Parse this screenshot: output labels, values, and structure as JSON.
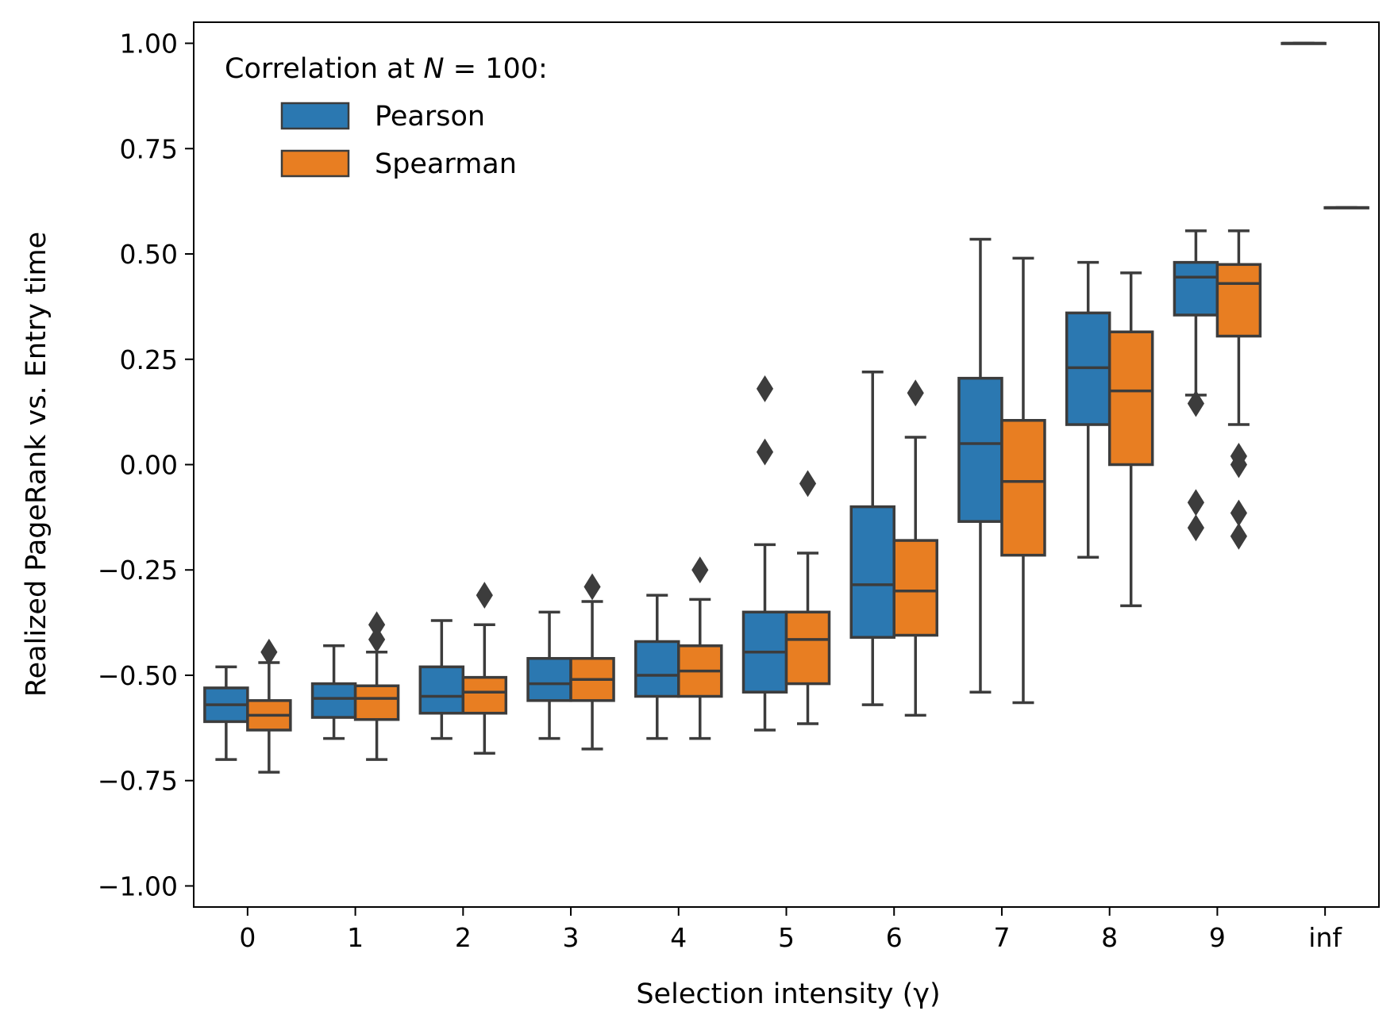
{
  "chart_data": {
    "type": "box",
    "xlabel": "Selection intensity (γ)",
    "ylabel": "Realized PageRank vs. Entry time",
    "ylim": [
      -1.05,
      1.05
    ],
    "yticks": [
      -1.0,
      -0.75,
      -0.5,
      -0.25,
      0.0,
      0.25,
      0.5,
      0.75,
      1.0
    ],
    "ytick_labels": [
      "−1.00",
      "−0.75",
      "−0.50",
      "−0.25",
      "0.00",
      "0.25",
      "0.50",
      "0.75",
      "1.00"
    ],
    "categories": [
      "0",
      "1",
      "2",
      "3",
      "4",
      "5",
      "6",
      "7",
      "8",
      "9",
      "inf"
    ],
    "legend": {
      "title": "Correlation at N = 100:",
      "placement": "upper left"
    },
    "colors": {
      "Pearson": "#2b78b1",
      "Spearman": "#e87e22",
      "edge": "#3c3c3c"
    },
    "series": [
      {
        "name": "Pearson",
        "boxes": [
          {
            "min": -0.7,
            "q1": -0.61,
            "median": -0.57,
            "q3": -0.53,
            "max": -0.48,
            "outliers": []
          },
          {
            "min": -0.65,
            "q1": -0.6,
            "median": -0.555,
            "q3": -0.52,
            "max": -0.43,
            "outliers": []
          },
          {
            "min": -0.65,
            "q1": -0.59,
            "median": -0.55,
            "q3": -0.48,
            "max": -0.37,
            "outliers": []
          },
          {
            "min": -0.65,
            "q1": -0.56,
            "median": -0.52,
            "q3": -0.46,
            "max": -0.35,
            "outliers": []
          },
          {
            "min": -0.65,
            "q1": -0.55,
            "median": -0.5,
            "q3": -0.42,
            "max": -0.31,
            "outliers": []
          },
          {
            "min": -0.63,
            "q1": -0.54,
            "median": -0.445,
            "q3": -0.35,
            "max": -0.19,
            "outliers": [
              0.18,
              0.03
            ]
          },
          {
            "min": -0.57,
            "q1": -0.41,
            "median": -0.285,
            "q3": -0.1,
            "max": 0.22,
            "outliers": []
          },
          {
            "min": -0.54,
            "q1": -0.135,
            "median": 0.05,
            "q3": 0.205,
            "max": 0.535,
            "outliers": []
          },
          {
            "min": -0.22,
            "q1": 0.095,
            "median": 0.23,
            "q3": 0.36,
            "max": 0.48,
            "outliers": []
          },
          {
            "min": 0.165,
            "q1": 0.355,
            "median": 0.445,
            "q3": 0.48,
            "max": 0.555,
            "outliers": [
              0.145,
              -0.09,
              -0.15
            ]
          },
          {
            "min": 1.0,
            "q1": 1.0,
            "median": 1.0,
            "q3": 1.0,
            "max": 1.0,
            "outliers": []
          }
        ]
      },
      {
        "name": "Spearman",
        "boxes": [
          {
            "min": -0.73,
            "q1": -0.63,
            "median": -0.595,
            "q3": -0.56,
            "max": -0.47,
            "outliers": [
              -0.445
            ]
          },
          {
            "min": -0.7,
            "q1": -0.605,
            "median": -0.555,
            "q3": -0.525,
            "max": -0.445,
            "outliers": [
              -0.38,
              -0.415
            ]
          },
          {
            "min": -0.685,
            "q1": -0.59,
            "median": -0.54,
            "q3": -0.505,
            "max": -0.38,
            "outliers": [
              -0.31
            ]
          },
          {
            "min": -0.675,
            "q1": -0.56,
            "median": -0.51,
            "q3": -0.46,
            "max": -0.325,
            "outliers": [
              -0.29
            ]
          },
          {
            "min": -0.65,
            "q1": -0.55,
            "median": -0.49,
            "q3": -0.43,
            "max": -0.32,
            "outliers": [
              -0.25
            ]
          },
          {
            "min": -0.615,
            "q1": -0.52,
            "median": -0.415,
            "q3": -0.35,
            "max": -0.21,
            "outliers": [
              -0.045
            ]
          },
          {
            "min": -0.595,
            "q1": -0.405,
            "median": -0.3,
            "q3": -0.18,
            "max": 0.065,
            "outliers": [
              0.17
            ]
          },
          {
            "min": -0.565,
            "q1": -0.215,
            "median": -0.04,
            "q3": 0.105,
            "max": 0.49,
            "outliers": []
          },
          {
            "min": -0.335,
            "q1": 0.0,
            "median": 0.175,
            "q3": 0.315,
            "max": 0.455,
            "outliers": []
          },
          {
            "min": 0.095,
            "q1": 0.305,
            "median": 0.43,
            "q3": 0.475,
            "max": 0.555,
            "outliers": [
              0.02,
              0.0,
              -0.115,
              -0.17
            ]
          },
          {
            "min": 0.61,
            "q1": 0.61,
            "median": 0.61,
            "q3": 0.61,
            "max": 0.61,
            "outliers": []
          }
        ]
      }
    ]
  }
}
